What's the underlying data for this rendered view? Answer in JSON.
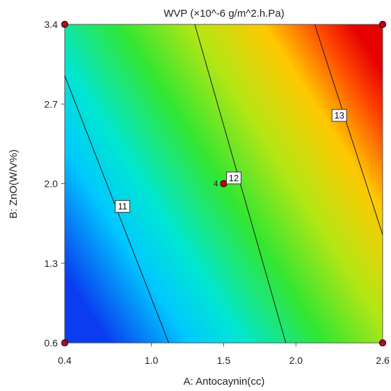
{
  "chart_data": {
    "type": "heatmap",
    "subtype": "contour",
    "title": "WVP (×10^-6 g/m^2.h.Pa)",
    "xlabel": "A: Antocaynin(cc)",
    "ylabel": "B: ZnO(W/V%)",
    "xlim": [
      0.4,
      2.6
    ],
    "ylim": [
      0.6,
      3.4
    ],
    "xticks": [
      "0.4",
      "1.0",
      "1.5",
      "2.0",
      "2.6"
    ],
    "xtick_values": [
      0.4,
      1.0,
      1.5,
      2.0,
      2.6
    ],
    "yticks": [
      "0.6",
      "1.3",
      "2.0",
      "2.7",
      "3.4"
    ],
    "ytick_values": [
      0.6,
      1.3,
      2.0,
      2.7,
      3.4
    ],
    "surface": {
      "corners": [
        {
          "x": 0.4,
          "y": 0.6,
          "z": 10.2
        },
        {
          "x": 2.6,
          "y": 0.6,
          "z": 13.0
        },
        {
          "x": 0.4,
          "y": 3.4,
          "z": 11.5
        },
        {
          "x": 2.6,
          "y": 3.4,
          "z": 14.3
        }
      ],
      "colormap": [
        "#0a3cf0",
        "#00c8ff",
        "#00e6d2",
        "#32e632",
        "#b4e614",
        "#ffc800",
        "#ff4600",
        "#e60000"
      ]
    },
    "contours": [
      {
        "level": 11,
        "label": "11",
        "points": [
          [
            0.4,
            2.95
          ],
          [
            1.12,
            0.6
          ]
        ],
        "label_at": [
          0.8,
          1.8
        ]
      },
      {
        "level": 12,
        "label": "12",
        "points": [
          [
            1.3,
            3.4
          ],
          [
            1.93,
            0.6
          ]
        ],
        "label_at": [
          1.57,
          2.05
        ]
      },
      {
        "level": 13,
        "label": "13",
        "points": [
          [
            2.13,
            3.4
          ],
          [
            2.6,
            1.55
          ]
        ],
        "label_at": [
          2.3,
          2.6
        ]
      }
    ],
    "design_points": [
      {
        "x": 0.4,
        "y": 0.6
      },
      {
        "x": 2.6,
        "y": 0.6
      },
      {
        "x": 0.4,
        "y": 3.4
      },
      {
        "x": 2.6,
        "y": 3.4
      },
      {
        "x": 1.5,
        "y": 2.0,
        "label": "4"
      }
    ],
    "grid": false
  }
}
